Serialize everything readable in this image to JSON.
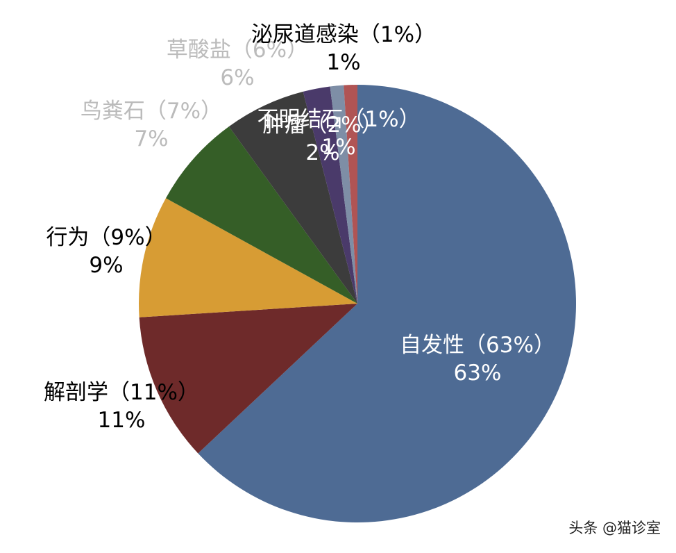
{
  "chart_data": {
    "type": "pie",
    "slices": [
      {
        "label": "自发性（63%）",
        "value_text": "63%",
        "value": 63,
        "color": "#4e6b94",
        "text_color": "#ffffff"
      },
      {
        "label": "解剖学（11%）",
        "value_text": "11%",
        "value": 11,
        "color": "#6e2a2a",
        "text_color": "#000000"
      },
      {
        "label": "行为（9%）",
        "value_text": "9%",
        "value": 9,
        "color": "#d79c34",
        "text_color": "#000000"
      },
      {
        "label": "鸟粪石（7%）",
        "value_text": "7%",
        "value": 7,
        "color": "#355e27",
        "text_color": "#bbbbbb"
      },
      {
        "label": "草酸盐（6%）",
        "value_text": "6%",
        "value": 6,
        "color": "#3c3c3c",
        "text_color": "#bbbbbb"
      },
      {
        "label": "肿瘤（2%）",
        "value_text": "2%",
        "value": 2,
        "color": "#4a3a6a",
        "text_color": "#ffffff"
      },
      {
        "label": "不明结石（1%）",
        "value_text": "1%",
        "value": 1,
        "color": "#7e8ea6",
        "text_color": "#ffffff"
      },
      {
        "label": "泌尿道感染（1%）",
        "value_text": "1%",
        "value": 1,
        "color": "#b05454",
        "text_color": "#000000"
      }
    ]
  },
  "watermark": "头条 @猫诊室"
}
